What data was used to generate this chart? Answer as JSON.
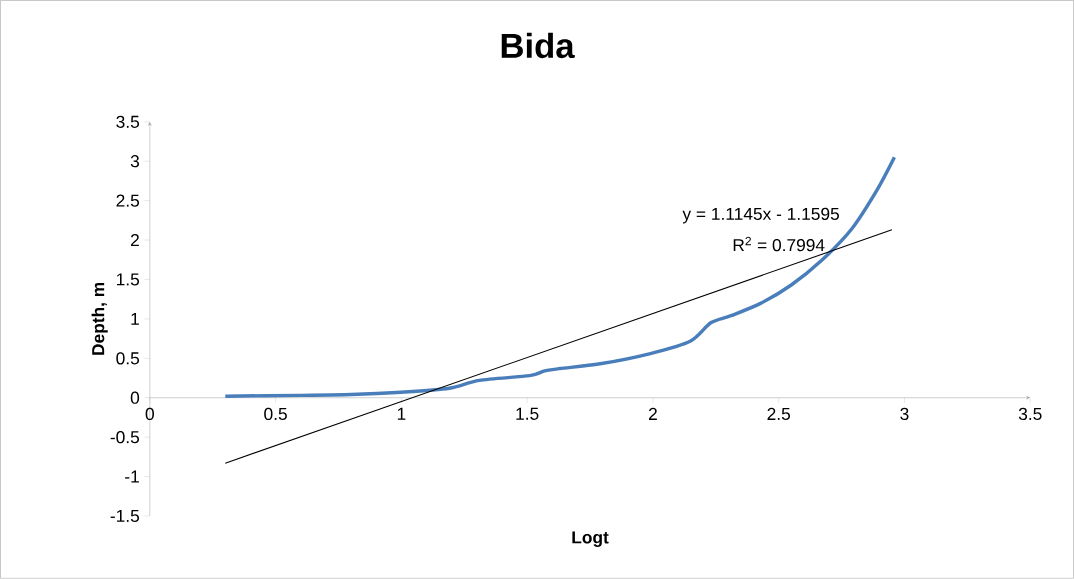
{
  "chart_data": {
    "type": "line",
    "title": "Bida",
    "xlabel": "Logt",
    "ylabel": "Depth, m",
    "series": [
      {
        "color": "#4a7ebb",
        "x": [
          0.3,
          0.6,
          0.8,
          1.0,
          1.19,
          1.31,
          1.51,
          1.57,
          1.63,
          1.79,
          1.99,
          2.15,
          2.23,
          2.31,
          2.43,
          2.55,
          2.67,
          2.79,
          2.89,
          2.96
        ],
        "values": [
          0.02,
          0.03,
          0.04,
          0.07,
          0.12,
          0.22,
          0.28,
          0.34,
          0.37,
          0.43,
          0.56,
          0.72,
          0.95,
          1.04,
          1.2,
          1.43,
          1.74,
          2.14,
          2.63,
          3.05
        ]
      },
      {
        "color": "#000000",
        "x": [
          0.3,
          2.95
        ],
        "values": [
          -0.83,
          2.13
        ]
      }
    ],
    "annotations": [
      "y = 1.1145x - 1.1595",
      "R$^{2}$ = 0.7994"
    ],
    "xlim": [
      0,
      3.5
    ],
    "ylim": [
      -1.5,
      3.5
    ],
    "xticks": [
      0,
      0.5,
      1,
      1.5,
      2,
      2.5,
      3,
      3.5
    ],
    "yticks": [
      -1.5,
      -1,
      -0.5,
      0,
      0.5,
      1,
      1.5,
      2,
      2.5,
      3,
      3.5
    ],
    "grid": false,
    "marker": "none"
  }
}
